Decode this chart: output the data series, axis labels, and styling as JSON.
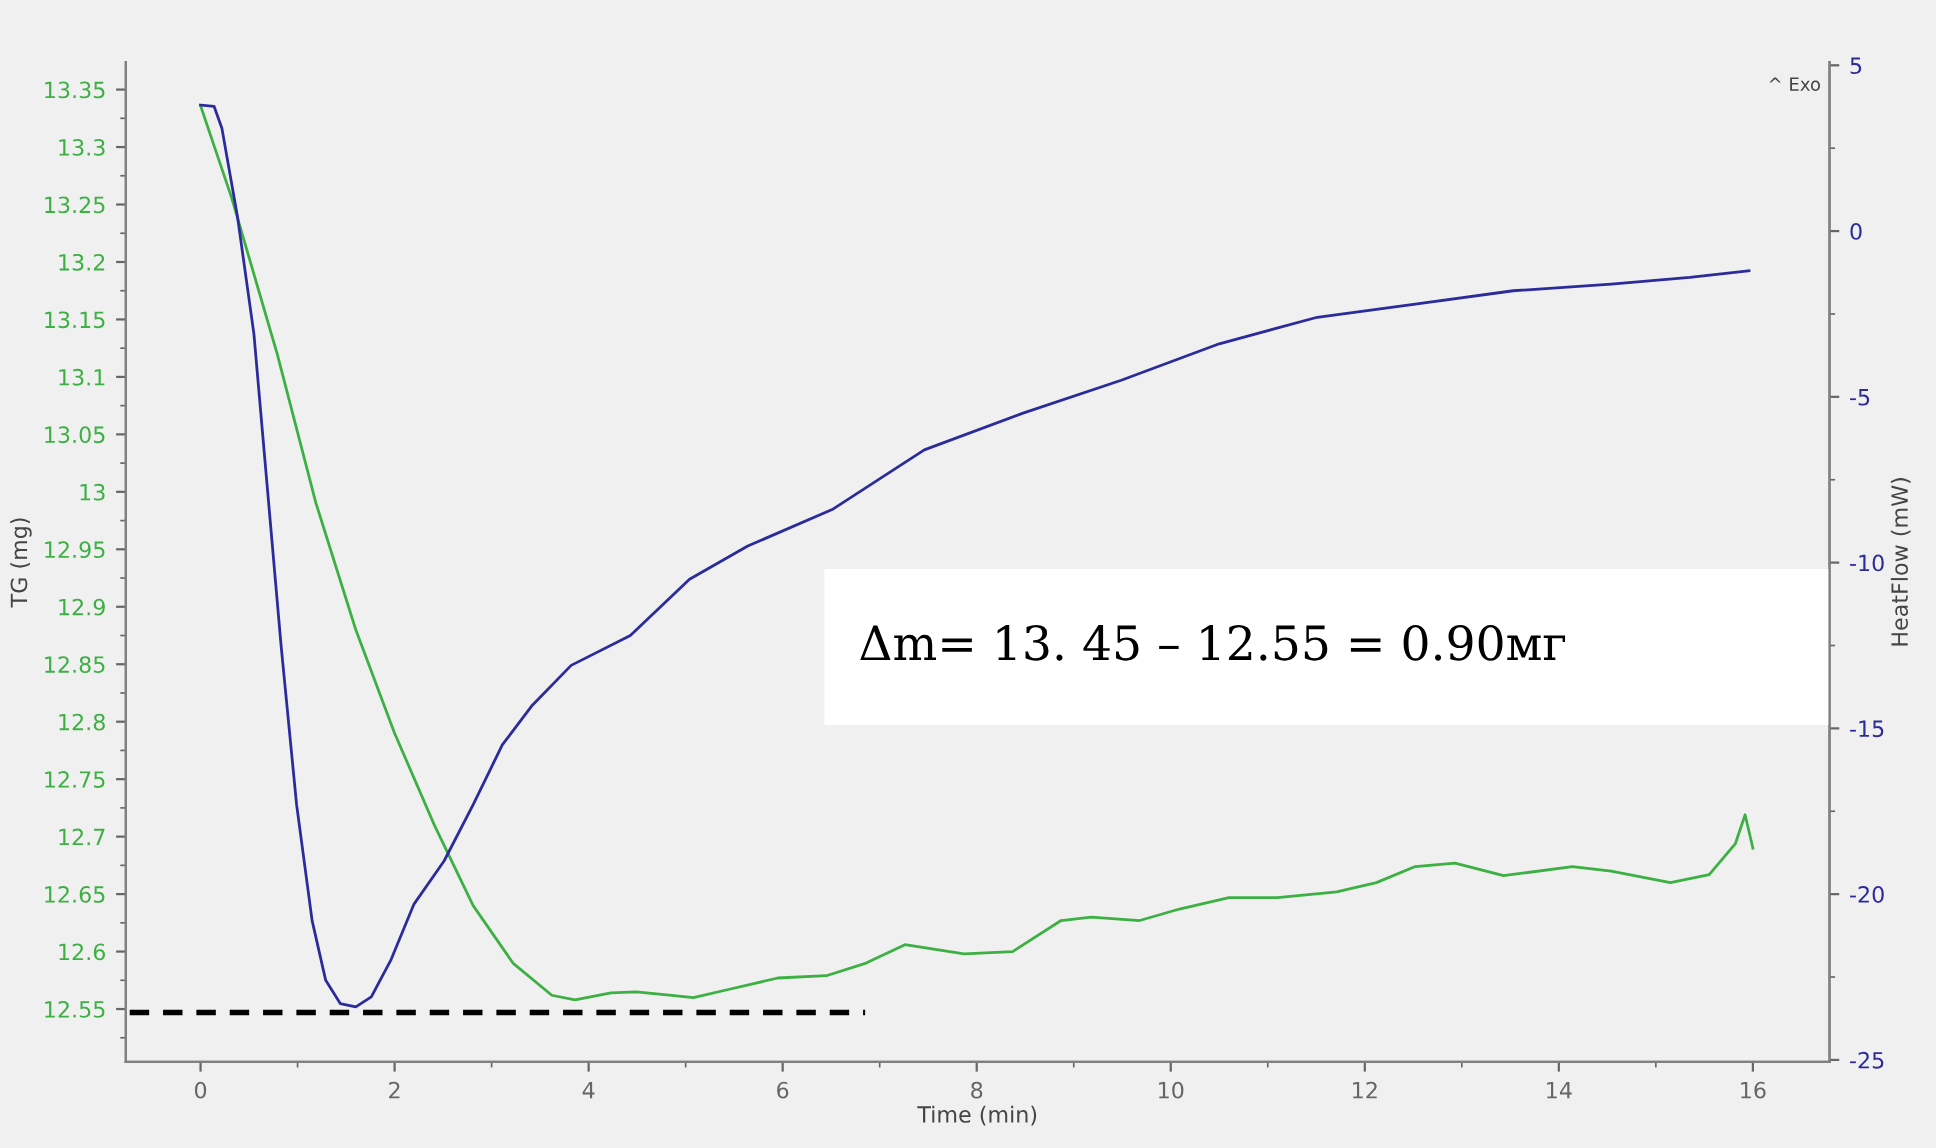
{
  "chart_data": {
    "type": "line",
    "xlabel": "Time (min)",
    "ylabel": "TG (mg)",
    "y2label": "HeatFlow (mW)",
    "xlim": [
      -0.77,
      16.79
    ],
    "xticks": [
      0,
      2,
      4,
      6,
      8,
      10,
      12,
      14,
      16
    ],
    "ylim": [
      12.504,
      13.374
    ],
    "yticks": [
      12.55,
      12.6,
      12.65,
      12.7,
      12.75,
      12.8,
      12.85,
      12.9,
      12.95,
      13,
      13.05,
      13.1,
      13.15,
      13.2,
      13.25,
      13.3,
      13.35
    ],
    "y2lim": [
      -25.06,
      5.1
    ],
    "y2ticks": [
      -25,
      -20,
      -15,
      -10,
      -5,
      0,
      5
    ],
    "grid": false,
    "legend": false,
    "marker": "none",
    "series": [
      {
        "color": "#3cb043",
        "axis": "y",
        "line_style": "solid",
        "x": [
          0,
          0.32,
          0.79,
          1.19,
          1.6,
          2.0,
          2.41,
          2.81,
          3.22,
          3.62,
          3.86,
          4.23,
          4.49,
          4.83,
          5.08,
          5.44,
          5.95,
          6.45,
          6.86,
          7.26,
          7.87,
          8.37,
          8.87,
          9.18,
          9.68,
          10.09,
          10.6,
          11.1,
          11.71,
          12.12,
          12.52,
          12.93,
          13.43,
          14.14,
          14.54,
          15.15,
          15.55,
          15.82,
          15.92,
          16.0
        ],
        "values": [
          13.336,
          13.256,
          13.12,
          12.99,
          12.88,
          12.79,
          12.71,
          12.64,
          12.59,
          12.562,
          12.558,
          12.564,
          12.565,
          12.562,
          12.56,
          12.567,
          12.577,
          12.579,
          12.59,
          12.606,
          12.598,
          12.6,
          12.627,
          12.63,
          12.627,
          12.637,
          12.647,
          12.647,
          12.652,
          12.66,
          12.674,
          12.677,
          12.666,
          12.674,
          12.67,
          12.66,
          12.667,
          12.694,
          12.719,
          12.69
        ]
      },
      {
        "color": "#2b2b9c",
        "axis": "y2",
        "line_style": "solid",
        "x": [
          0,
          0.14,
          0.22,
          0.38,
          0.55,
          0.69,
          0.83,
          0.99,
          1.15,
          1.29,
          1.44,
          1.6,
          1.76,
          1.96,
          2.2,
          2.51,
          2.81,
          3.11,
          3.42,
          3.82,
          4.43,
          5.04,
          5.64,
          6.51,
          7.46,
          8.47,
          9.49,
          10.5,
          11.51,
          12.52,
          13.53,
          14.54,
          15.35,
          15.96
        ],
        "values": [
          3.8,
          3.76,
          3.1,
          0.45,
          -3.1,
          -7.8,
          -12.5,
          -17.3,
          -20.8,
          -22.6,
          -23.3,
          -23.4,
          -23.1,
          -22.0,
          -20.3,
          -19.0,
          -17.3,
          -15.5,
          -14.3,
          -13.1,
          -12.2,
          -10.5,
          -9.5,
          -8.4,
          -6.6,
          -5.5,
          -4.5,
          -3.4,
          -2.6,
          -2.2,
          -1.8,
          -1.6,
          -1.4,
          -1.2
        ]
      },
      {
        "color": "#000000",
        "axis": "y",
        "line_style": "dashed",
        "x": [
          -0.73,
          6.85
        ],
        "values": [
          12.547,
          12.547
        ]
      }
    ],
    "annotations": [
      "Δm= 13. 45 – 12.55 = 0.90мг",
      "^ Exo"
    ]
  }
}
